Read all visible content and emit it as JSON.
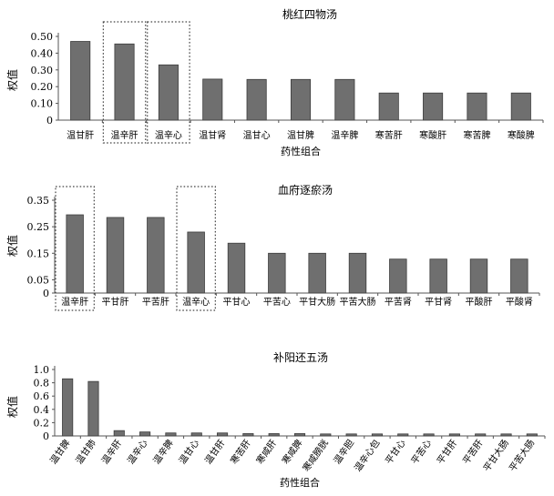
{
  "chart_data": [
    {
      "type": "bar",
      "title": "桃红四物汤",
      "xlabel": "药性组合",
      "ylabel": "权值",
      "ylim": [
        0,
        0.5
      ],
      "yticks": [
        "0",
        "0.10",
        "0.20",
        "0.30",
        "0.40",
        "0.50"
      ],
      "categories": [
        "温甘肝",
        "温辛肝",
        "温辛心",
        "温甘肾",
        "温甘心",
        "温甘脾",
        "温辛脾",
        "寒苦肝",
        "寒酸肝",
        "寒苦脾",
        "寒酸脾"
      ],
      "values": [
        0.47,
        0.455,
        0.33,
        0.245,
        0.243,
        0.243,
        0.243,
        0.162,
        0.162,
        0.162,
        0.162
      ],
      "highlighted": [
        "温辛肝",
        "温辛心"
      ]
    },
    {
      "type": "bar",
      "title": "血府逐瘀汤",
      "xlabel": "",
      "ylabel": "权值",
      "ylim": [
        0,
        0.35
      ],
      "yticks": [
        "0",
        "0.05",
        "0.15",
        "0.25",
        "0.35"
      ],
      "categories": [
        "温辛肝",
        "平甘肝",
        "平苦肝",
        "温辛心",
        "平甘心",
        "平苦心",
        "平甘大肠",
        "平苦大肠",
        "平苦肾",
        "平甘肾",
        "平酸肝",
        "平酸肾"
      ],
      "values": [
        0.295,
        0.285,
        0.285,
        0.23,
        0.188,
        0.15,
        0.15,
        0.15,
        0.128,
        0.128,
        0.128,
        0.128
      ],
      "highlighted": [
        "温辛肝",
        "温辛心"
      ]
    },
    {
      "type": "bar",
      "title": "补阳还五汤",
      "xlabel": "药性组合",
      "ylabel": "权值",
      "ylim": [
        0,
        1.0
      ],
      "yticks": [
        "0",
        "0.2",
        "0.4",
        "0.6",
        "0.8",
        "1.0"
      ],
      "categories": [
        "温甘脾",
        "温甘肺",
        "温辛肝",
        "温辛心",
        "温辛脾",
        "温甘心",
        "温甘肝",
        "寒苦肝",
        "寒咸肝",
        "寒咸脾",
        "寒咸膀胱",
        "温辛胆",
        "温辛心包",
        "平甘心",
        "平苦心",
        "平甘肝",
        "平苦肝",
        "平甘大肠",
        "平苦大肠"
      ],
      "values": [
        0.86,
        0.82,
        0.08,
        0.06,
        0.045,
        0.045,
        0.045,
        0.035,
        0.035,
        0.035,
        0.03,
        0.03,
        0.03,
        0.03,
        0.03,
        0.03,
        0.03,
        0.03,
        0.03
      ],
      "highlighted": []
    }
  ]
}
